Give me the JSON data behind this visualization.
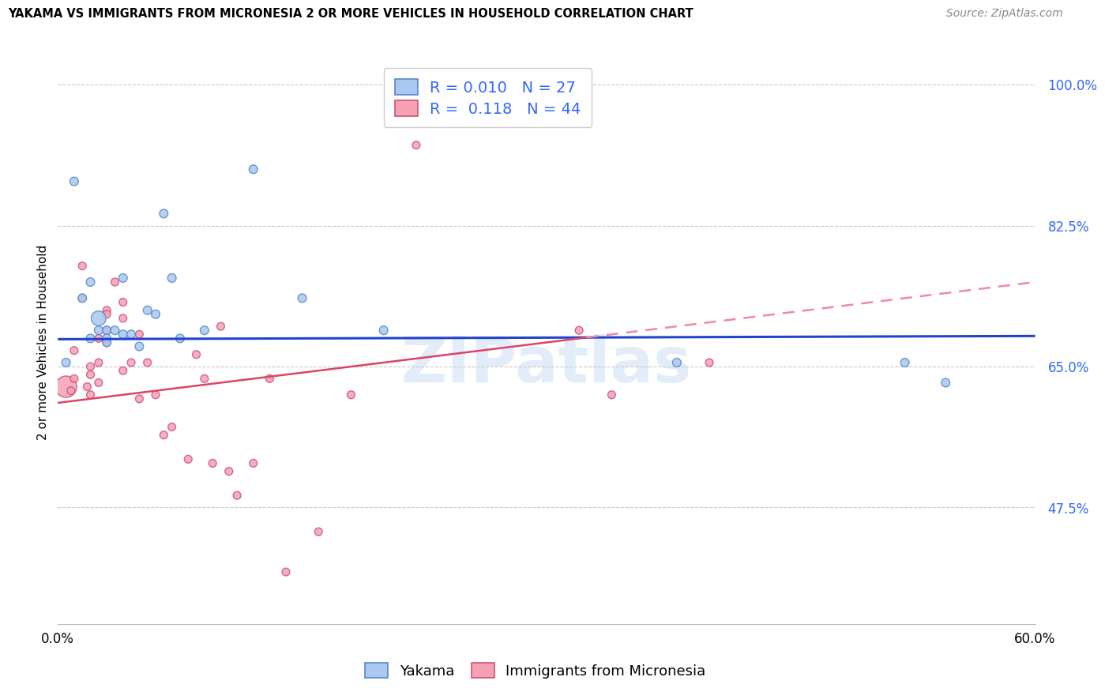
{
  "title": "YAKAMA VS IMMIGRANTS FROM MICRONESIA 2 OR MORE VEHICLES IN HOUSEHOLD CORRELATION CHART",
  "source": "Source: ZipAtlas.com",
  "ylabel": "2 or more Vehicles in Household",
  "xmin": 0.0,
  "xmax": 0.6,
  "ymin": 0.33,
  "ymax": 1.03,
  "yticks": [
    0.475,
    0.65,
    0.825,
    1.0
  ],
  "ytick_labels": [
    "47.5%",
    "65.0%",
    "82.5%",
    "100.0%"
  ],
  "xticks": [
    0.0,
    0.1,
    0.2,
    0.3,
    0.4,
    0.5,
    0.6
  ],
  "xtick_labels": [
    "0.0%",
    "",
    "",
    "",
    "",
    "",
    "60.0%"
  ],
  "background_color": "#ffffff",
  "grid_color": "#c8c8c8",
  "watermark": "ZIPatlas",
  "legend_R1": "0.010",
  "legend_N1": "27",
  "legend_R2": "0.118",
  "legend_N2": "44",
  "series1_color": "#aac8f0",
  "series1_edge": "#5588cc",
  "series2_color": "#f5a0b5",
  "series2_edge": "#cc5577",
  "line1_color": "#2244cc",
  "line2_color": "#dd4466",
  "line2_dash_color": "#ee88aa",
  "yakama_x": [
    0.005,
    0.01,
    0.015,
    0.02,
    0.02,
    0.025,
    0.025,
    0.03,
    0.03,
    0.03,
    0.035,
    0.04,
    0.04,
    0.045,
    0.05,
    0.055,
    0.06,
    0.065,
    0.07,
    0.075,
    0.09,
    0.12,
    0.15,
    0.2,
    0.38,
    0.52,
    0.545
  ],
  "yakama_y": [
    0.655,
    0.88,
    0.735,
    0.685,
    0.755,
    0.695,
    0.71,
    0.695,
    0.685,
    0.68,
    0.695,
    0.76,
    0.69,
    0.69,
    0.675,
    0.72,
    0.715,
    0.84,
    0.76,
    0.685,
    0.695,
    0.895,
    0.735,
    0.695,
    0.655,
    0.655,
    0.63
  ],
  "yakama_sizes": [
    60,
    60,
    60,
    60,
    60,
    60,
    180,
    60,
    60,
    60,
    60,
    60,
    60,
    60,
    60,
    60,
    60,
    60,
    60,
    60,
    60,
    60,
    60,
    60,
    60,
    60,
    60
  ],
  "micronesia_x": [
    0.005,
    0.008,
    0.01,
    0.01,
    0.015,
    0.015,
    0.018,
    0.02,
    0.02,
    0.02,
    0.025,
    0.025,
    0.025,
    0.03,
    0.03,
    0.03,
    0.03,
    0.035,
    0.04,
    0.04,
    0.04,
    0.045,
    0.05,
    0.05,
    0.055,
    0.06,
    0.065,
    0.07,
    0.08,
    0.085,
    0.09,
    0.095,
    0.1,
    0.105,
    0.11,
    0.12,
    0.13,
    0.14,
    0.16,
    0.18,
    0.22,
    0.32,
    0.34,
    0.4
  ],
  "micronesia_y": [
    0.625,
    0.62,
    0.67,
    0.635,
    0.775,
    0.735,
    0.625,
    0.65,
    0.64,
    0.615,
    0.685,
    0.655,
    0.63,
    0.72,
    0.715,
    0.695,
    0.68,
    0.755,
    0.73,
    0.71,
    0.645,
    0.655,
    0.69,
    0.61,
    0.655,
    0.615,
    0.565,
    0.575,
    0.535,
    0.665,
    0.635,
    0.53,
    0.7,
    0.52,
    0.49,
    0.53,
    0.635,
    0.395,
    0.445,
    0.615,
    0.925,
    0.695,
    0.615,
    0.655
  ],
  "micronesia_sizes": [
    380,
    50,
    50,
    50,
    50,
    50,
    50,
    50,
    50,
    50,
    50,
    50,
    50,
    50,
    50,
    50,
    50,
    50,
    50,
    50,
    50,
    50,
    50,
    50,
    50,
    50,
    50,
    50,
    50,
    50,
    50,
    50,
    50,
    50,
    50,
    50,
    50,
    50,
    50,
    50,
    50,
    50,
    50,
    50
  ],
  "line1_y_at_0": 0.684,
  "line1_y_at_60": 0.688,
  "line2_y_at_0": 0.605,
  "line2_y_at_60": 0.755
}
